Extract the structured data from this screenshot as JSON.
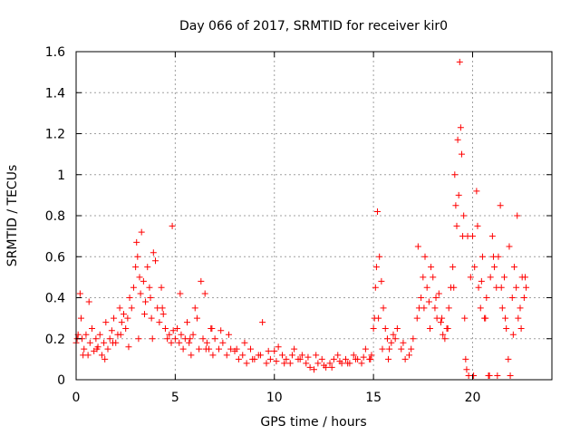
{
  "chart_data": {
    "type": "scatter",
    "title": "Day 066 of 2017, SRMTID for receiver kir0",
    "xlabel": "GPS time / hours",
    "ylabel": "SRMTID / TECUs",
    "xlim": [
      0,
      24
    ],
    "ylim": [
      0,
      1.6
    ],
    "grid": true,
    "marker": "+",
    "color": "#ff0000",
    "x_ticks": [
      0,
      5,
      10,
      15,
      20
    ],
    "x_tick_labels": [
      "0",
      "5",
      "10",
      "15",
      "20"
    ],
    "y_ticks": [
      0,
      0.2,
      0.4,
      0.6,
      0.8,
      1.0,
      1.2,
      1.4,
      1.6
    ],
    "y_tick_labels": [
      "0",
      "0.2",
      "0.4",
      "0.6",
      "0.8",
      "1",
      "1.2",
      "1.4",
      "1.6"
    ],
    "series": [
      {
        "name": "SRMTID",
        "x": [
          0.0,
          0.1,
          0.2,
          0.25,
          0.3,
          0.4,
          0.5,
          0.6,
          0.7,
          0.8,
          0.9,
          1.0,
          1.1,
          1.2,
          1.3,
          1.4,
          1.5,
          1.6,
          1.7,
          1.8,
          1.9,
          2.0,
          2.1,
          2.2,
          2.3,
          2.4,
          2.5,
          2.6,
          2.7,
          2.8,
          2.9,
          3.0,
          3.05,
          3.1,
          3.2,
          3.25,
          3.3,
          3.4,
          3.5,
          3.6,
          3.7,
          3.75,
          3.8,
          3.9,
          4.0,
          4.1,
          4.2,
          4.3,
          4.4,
          4.5,
          4.6,
          4.7,
          4.8,
          4.9,
          5.0,
          5.1,
          5.2,
          5.3,
          5.4,
          5.5,
          5.6,
          5.7,
          5.8,
          5.9,
          6.0,
          6.1,
          6.2,
          6.3,
          6.4,
          6.5,
          6.6,
          6.7,
          6.8,
          6.9,
          7.0,
          7.2,
          7.4,
          7.6,
          7.8,
          8.0,
          8.2,
          8.4,
          8.6,
          8.8,
          9.0,
          9.2,
          9.4,
          9.6,
          9.8,
          10.0,
          10.2,
          10.4,
          10.6,
          10.8,
          11.0,
          11.2,
          11.4,
          11.6,
          11.8,
          12.0,
          12.2,
          12.4,
          12.6,
          12.8,
          13.0,
          13.2,
          13.4,
          13.6,
          13.8,
          14.0,
          14.2,
          14.4,
          14.6,
          14.8,
          14.9,
          15.0,
          15.05,
          15.1,
          15.15,
          15.2,
          15.3,
          15.4,
          15.5,
          15.6,
          15.7,
          15.8,
          15.9,
          16.0,
          16.2,
          16.4,
          16.6,
          16.8,
          17.0,
          17.2,
          17.3,
          17.4,
          17.5,
          17.6,
          17.7,
          17.8,
          17.9,
          18.0,
          18.1,
          18.2,
          18.3,
          18.4,
          18.5,
          18.6,
          18.7,
          18.8,
          18.9,
          19.0,
          19.1,
          19.15,
          19.2,
          19.3,
          19.35,
          19.4,
          19.45,
          19.5,
          19.55,
          19.6,
          19.65,
          19.7,
          19.8,
          19.9,
          20.0,
          20.1,
          20.2,
          20.3,
          20.4,
          20.5,
          20.6,
          20.7,
          20.8,
          20.9,
          21.0,
          21.1,
          21.2,
          21.3,
          21.4,
          21.5,
          21.6,
          21.7,
          21.8,
          21.9,
          22.0,
          22.1,
          22.2,
          22.3,
          22.4,
          22.5,
          22.6,
          22.7,
          0.05,
          0.35,
          0.65,
          1.05,
          1.45,
          1.85,
          2.25,
          2.65,
          3.15,
          3.45,
          3.85,
          4.35,
          4.85,
          5.25,
          5.75,
          6.55,
          6.85,
          7.3,
          7.7,
          8.1,
          8.5,
          8.9,
          9.3,
          9.7,
          10.1,
          10.5,
          10.9,
          11.3,
          11.7,
          12.1,
          12.5,
          12.9,
          13.3,
          13.7,
          14.1,
          14.5,
          14.85,
          15.25,
          15.45,
          15.75,
          16.1,
          16.5,
          16.9,
          17.25,
          17.55,
          17.85,
          18.15,
          18.45,
          18.75,
          19.05,
          19.25,
          19.75,
          20.05,
          20.25,
          20.45,
          20.65,
          20.85,
          21.05,
          21.25,
          21.45,
          21.65,
          21.85,
          22.05,
          22.25,
          22.45,
          22.65
        ],
        "y": [
          0.18,
          0.22,
          0.42,
          0.3,
          0.2,
          0.15,
          0.22,
          0.12,
          0.18,
          0.25,
          0.14,
          0.2,
          0.16,
          0.22,
          0.12,
          0.18,
          0.28,
          0.15,
          0.2,
          0.24,
          0.3,
          0.18,
          0.22,
          0.35,
          0.28,
          0.32,
          0.25,
          0.3,
          0.4,
          0.35,
          0.45,
          0.55,
          0.67,
          0.6,
          0.5,
          0.42,
          0.72,
          0.48,
          0.38,
          0.55,
          0.45,
          0.4,
          0.3,
          0.62,
          0.58,
          0.35,
          0.28,
          0.45,
          0.32,
          0.25,
          0.2,
          0.22,
          0.18,
          0.24,
          0.2,
          0.25,
          0.18,
          0.22,
          0.15,
          0.2,
          0.28,
          0.18,
          0.12,
          0.22,
          0.35,
          0.3,
          0.15,
          0.48,
          0.2,
          0.42,
          0.18,
          0.15,
          0.25,
          0.12,
          0.2,
          0.15,
          0.18,
          0.12,
          0.15,
          0.14,
          0.1,
          0.12,
          0.08,
          0.15,
          0.1,
          0.12,
          0.28,
          0.08,
          0.1,
          0.14,
          0.16,
          0.12,
          0.1,
          0.08,
          0.15,
          0.1,
          0.12,
          0.08,
          0.06,
          0.05,
          0.08,
          0.1,
          0.06,
          0.08,
          0.1,
          0.12,
          0.08,
          0.1,
          0.08,
          0.12,
          0.1,
          0.08,
          0.15,
          0.1,
          0.12,
          0.25,
          0.3,
          0.45,
          0.55,
          0.82,
          0.6,
          0.48,
          0.35,
          0.25,
          0.2,
          0.15,
          0.18,
          0.22,
          0.25,
          0.15,
          0.1,
          0.12,
          0.2,
          0.3,
          0.35,
          0.4,
          0.5,
          0.6,
          0.45,
          0.38,
          0.55,
          0.5,
          0.35,
          0.3,
          0.42,
          0.28,
          0.22,
          0.2,
          0.25,
          0.35,
          0.45,
          0.55,
          1.0,
          0.85,
          0.75,
          0.9,
          1.55,
          1.23,
          1.1,
          0.7,
          0.8,
          0.3,
          0.1,
          0.05,
          0.02,
          0.5,
          0.7,
          0.55,
          0.92,
          0.45,
          0.35,
          0.6,
          0.3,
          0.4,
          0.02,
          0.5,
          0.7,
          0.55,
          0.45,
          0.6,
          0.85,
          0.35,
          0.5,
          0.25,
          0.1,
          0.02,
          0.4,
          0.55,
          0.45,
          0.3,
          0.35,
          0.5,
          0.4,
          0.45,
          0.2,
          0.12,
          0.38,
          0.15,
          0.1,
          0.18,
          0.22,
          0.16,
          0.2,
          0.32,
          0.2,
          0.35,
          0.75,
          0.42,
          0.2,
          0.15,
          0.25,
          0.24,
          0.22,
          0.15,
          0.18,
          0.1,
          0.12,
          0.14,
          0.09,
          0.08,
          0.12,
          0.1,
          0.11,
          0.12,
          0.07,
          0.06,
          0.09,
          0.08,
          0.1,
          0.11,
          0.1,
          0.3,
          0.15,
          0.1,
          0.2,
          0.18,
          0.15,
          0.65,
          0.35,
          0.25,
          0.4,
          0.3,
          0.25,
          0.45,
          1.17,
          0.7,
          0.02,
          0.75,
          0.48,
          0.3,
          0.02,
          0.6,
          0.02,
          0.45,
          0.3,
          0.65,
          0.22,
          0.8,
          0.25,
          0.5
        ]
      }
    ]
  }
}
